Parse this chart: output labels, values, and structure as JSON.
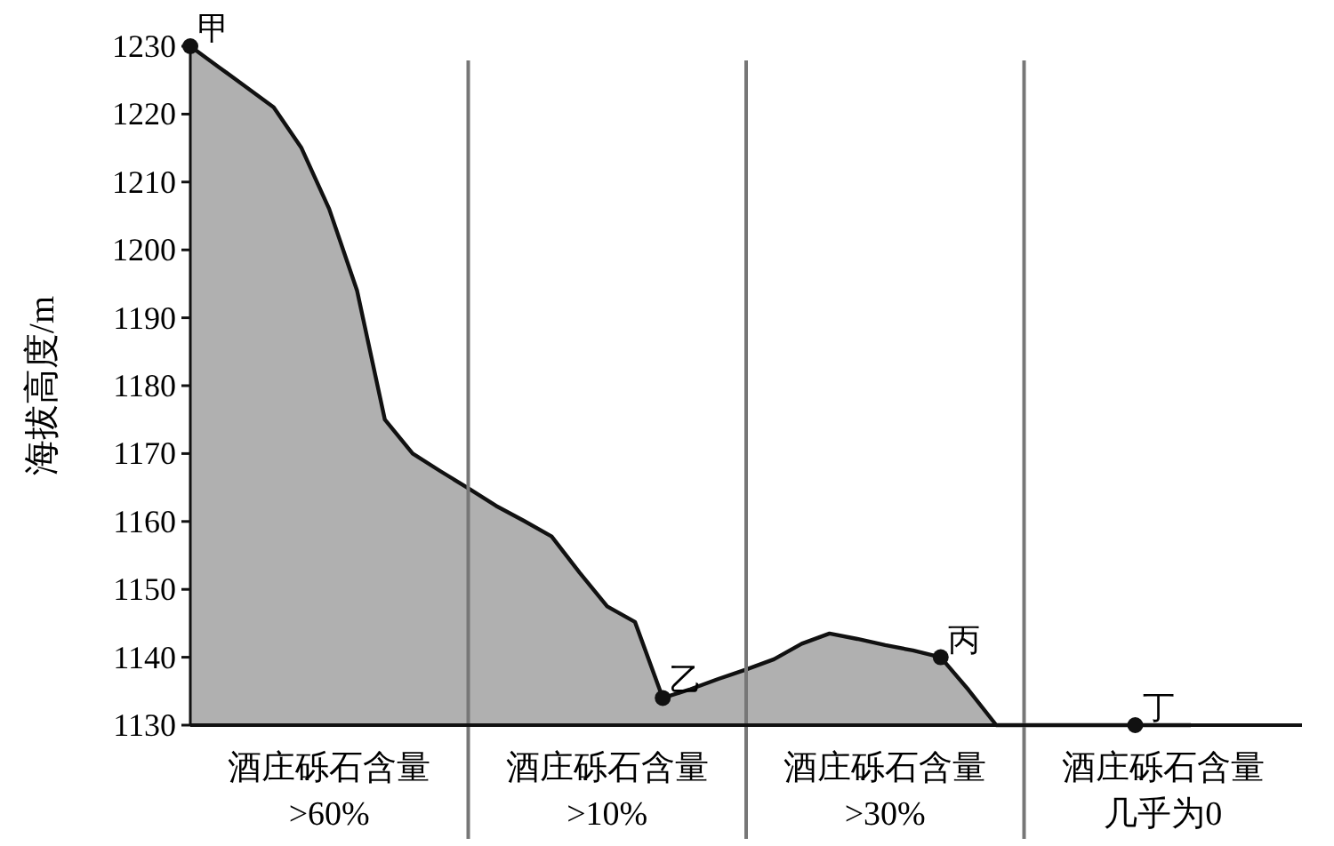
{
  "chart_data": {
    "type": "area",
    "ylabel": "海拔高度/m",
    "categories": [
      null,
      null,
      null,
      null,
      null,
      null,
      null,
      null,
      null,
      null,
      null,
      null,
      null,
      null,
      null,
      null,
      null,
      null,
      null,
      null,
      null,
      null,
      null,
      null,
      null,
      null,
      null,
      null,
      null,
      null,
      null,
      null,
      null,
      null,
      null,
      null,
      null
    ],
    "series": [
      {
        "color": "#b0b0b0",
        "values": [
          1230,
          1227,
          1224,
          1221,
          1215,
          1206,
          1194,
          1175,
          1170,
          1167.4,
          1164.9,
          1162.3,
          1160.1,
          1157.8,
          1152.5,
          1147.5,
          1145.2,
          1134,
          1135.3,
          1136.8,
          1138.2,
          1139.7,
          1142,
          1143.5,
          1142.7,
          1141.8,
          1141,
          1140,
          1135.2,
          1130,
          1130,
          1130,
          1130,
          1130,
          1130,
          1130,
          1130
        ]
      },
      {
        "type": "scatter",
        "color": "#111111",
        "marker": "circle",
        "values": [
          1230,
          null,
          null,
          null,
          null,
          null,
          null,
          null,
          null,
          null,
          null,
          null,
          null,
          null,
          null,
          null,
          null,
          1134,
          null,
          null,
          null,
          null,
          null,
          null,
          null,
          null,
          null,
          1140,
          null,
          null,
          null,
          null,
          null,
          null,
          1130,
          null,
          null
        ],
        "value_labels": [
          "甲",
          null,
          null,
          null,
          null,
          null,
          null,
          null,
          null,
          null,
          null,
          null,
          null,
          null,
          null,
          null,
          null,
          "乙",
          null,
          null,
          null,
          null,
          null,
          null,
          null,
          null,
          null,
          "丙",
          null,
          null,
          null,
          null,
          null,
          null,
          "丁",
          null,
          null
        ]
      }
    ],
    "grid": "x",
    "ylim": [
      1130,
      1230
    ],
    "yticks": [
      1130,
      1140,
      1150,
      1160,
      1170,
      1180,
      1190,
      1200,
      1210,
      1220,
      1230
    ],
    "annotations": [
      "酒庄砾石含量>60%",
      "酒庄砾石含量>10%",
      "酒庄砾石含量>30%",
      "酒庄砾石含量几乎为0"
    ]
  }
}
